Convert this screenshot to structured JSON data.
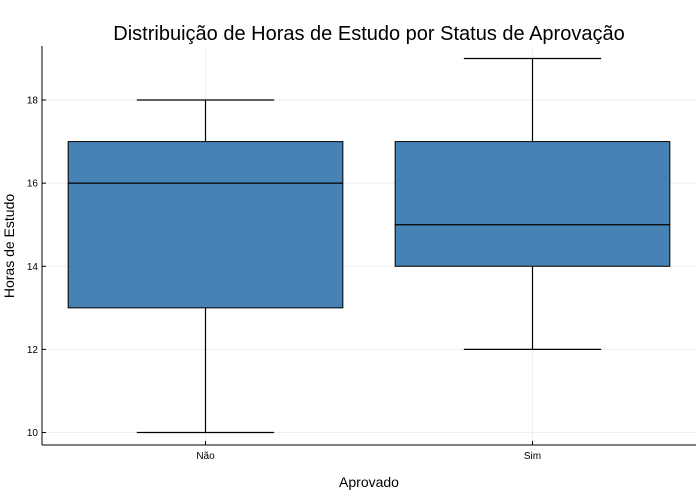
{
  "chart_data": {
    "type": "box",
    "title": "Distribuição de Horas de Estudo por Status de Aprovação",
    "xlabel": "Aprovado",
    "ylabel": "Horas de Estudo",
    "ylim": [
      9.7,
      19.3
    ],
    "yticks": [
      "10",
      "12",
      "14",
      "16",
      "18"
    ],
    "ytick_values": [
      10,
      12,
      14,
      16,
      18
    ],
    "grid": true,
    "legend": "none",
    "box_color": "#4682b4",
    "categories": [
      "Não",
      "Sim"
    ],
    "boxes": [
      {
        "category": "Não",
        "min": 10,
        "q1": 13,
        "median": 16,
        "q3": 17,
        "max": 18
      },
      {
        "category": "Sim",
        "min": 12,
        "q1": 14,
        "median": 15,
        "q3": 17,
        "max": 19
      }
    ]
  }
}
